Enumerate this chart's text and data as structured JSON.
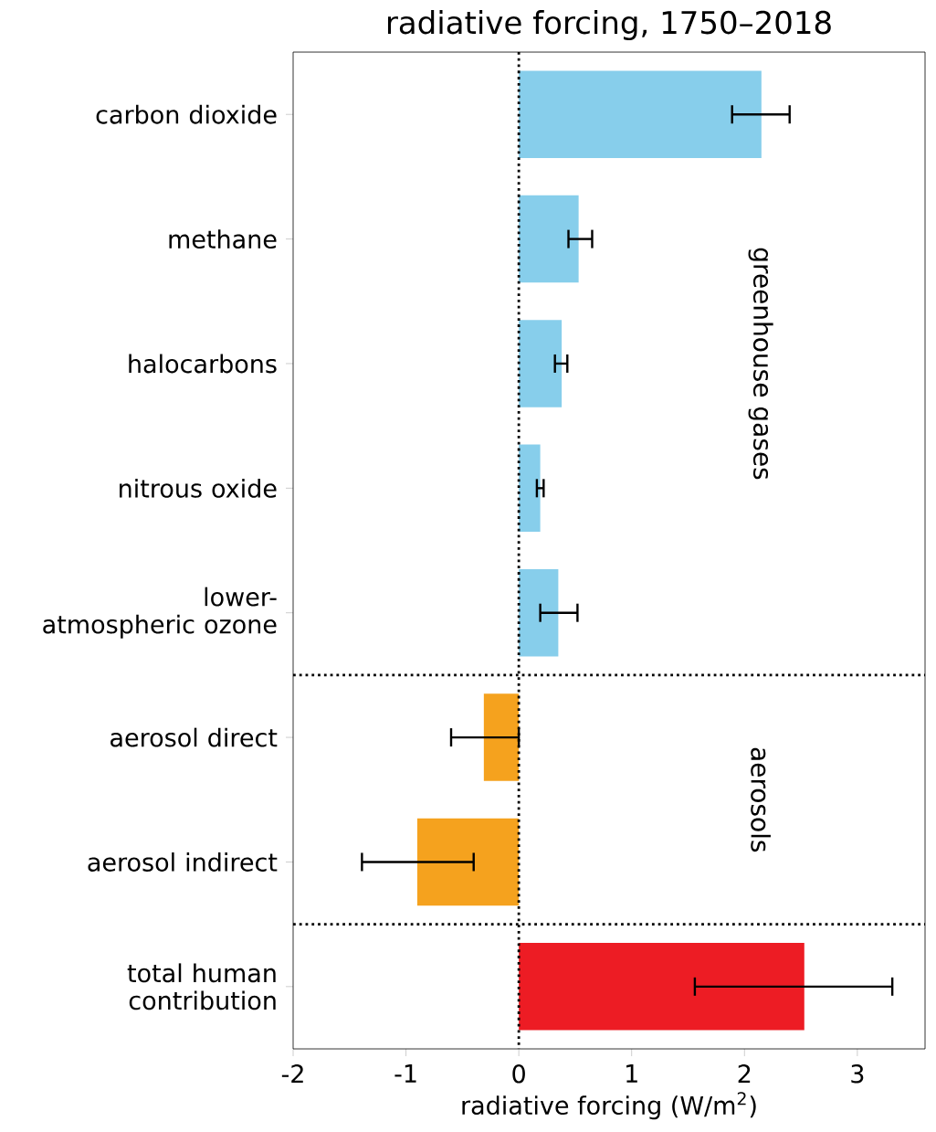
{
  "chart_data": {
    "type": "bar",
    "orientation": "horizontal",
    "title": "radiative forcing, 1750–2018",
    "xlabel": "radiative forcing (W/m$^{2}$)",
    "categories": [
      "carbon dioxide",
      "methane",
      "halocarbons",
      "nitrous oxide",
      "lower-atmospheric ozone",
      "aerosol direct",
      "aerosol indirect",
      "total human contribution"
    ],
    "values": [
      2.15,
      0.53,
      0.38,
      0.19,
      0.35,
      -0.31,
      -0.9,
      2.53
    ],
    "errors": [
      [
        1.89,
        2.4
      ],
      [
        0.44,
        0.65
      ],
      [
        0.32,
        0.43
      ],
      [
        0.16,
        0.22
      ],
      [
        0.19,
        0.52
      ],
      [
        -0.6,
        0
      ],
      [
        -1.39,
        -0.4
      ],
      [
        1.56,
        3.31
      ]
    ],
    "colors": [
      "#87ceeb",
      "#87ceeb",
      "#87ceeb",
      "#87ceeb",
      "#87ceeb",
      "#f5a21e",
      "#f5a21e",
      "#ed1c24"
    ],
    "xlim": [
      -2,
      3.6
    ],
    "xticks": [
      -2,
      -1,
      0,
      1,
      2,
      3
    ],
    "ref_lines": [
      {
        "axis": "x",
        "value": 0,
        "line_style": "dotted"
      }
    ],
    "annotations": [
      "greenhouse gases",
      "aerosols"
    ],
    "grid": false
  }
}
